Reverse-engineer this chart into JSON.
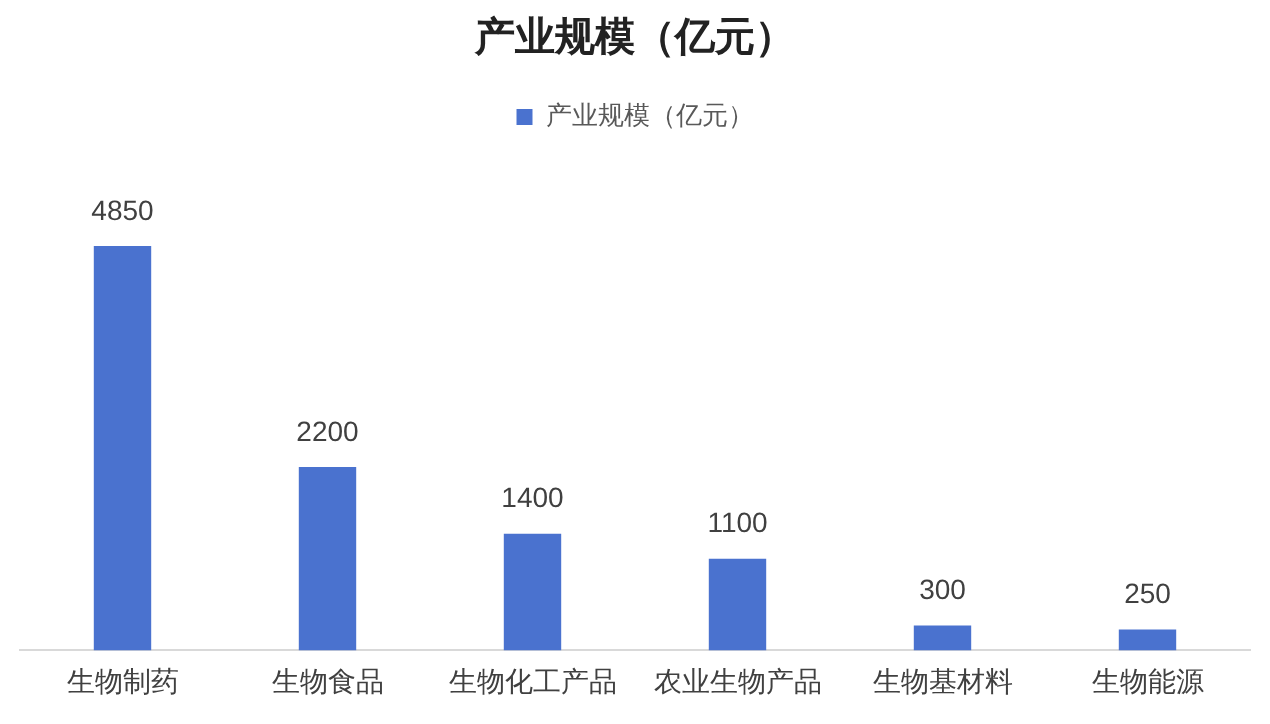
{
  "chart_data": {
    "type": "bar",
    "title": "产业规模（亿元）",
    "categories": [
      "生物制药",
      "生物食品",
      "生物化工产品",
      "农业生物产品",
      "生物基材料",
      "生物能源"
    ],
    "series": [
      {
        "name": "产业规模（亿元）",
        "color": "#4a72cf",
        "values": [
          4850,
          2200,
          1400,
          1100,
          300,
          250
        ]
      }
    ],
    "data_labels": true,
    "legend": "top",
    "grid": false,
    "tick_labels": "x"
  }
}
